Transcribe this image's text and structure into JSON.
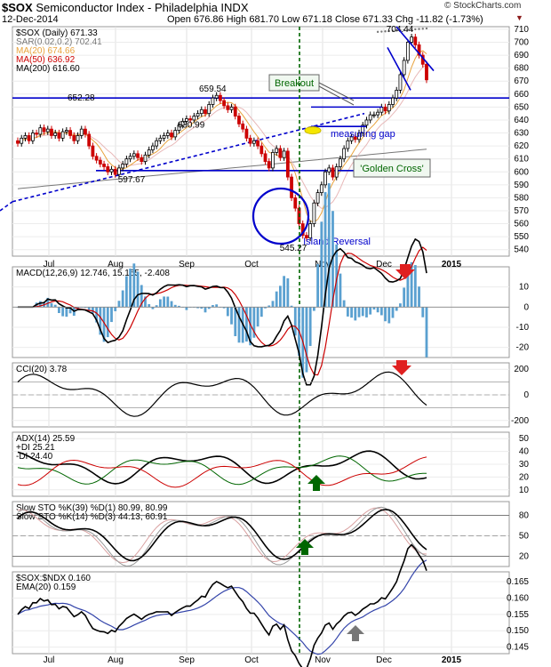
{
  "header": {
    "symbol": "$SOX",
    "name": "Semiconductor Index - Philadelphia INDX",
    "date": "12-Dec-2014",
    "ohlc": "Open 676.86  High 681.70  Low 671.18  Close 671.33  Chg -11.82 (-1.73%)",
    "copyright": "© StockCharts.com"
  },
  "colors": {
    "up": "#000000",
    "down": "#cc0000",
    "ma20": "#e8a33d",
    "ma50": "#cc0000",
    "ma200": "#777777",
    "blue": "#0000cc",
    "green": "#006600"
  },
  "chart_data": [
    {
      "type": "candlestick",
      "legend": [
        "$SOX (Daily) 671.33",
        "SAR(0.02,0.2) 702.41",
        "MA(20) 674.66",
        "MA(50) 636.92",
        "MA(200) 616.60"
      ],
      "ylim": [
        535,
        712
      ],
      "y_ticks": [
        540,
        550,
        560,
        570,
        580,
        590,
        600,
        610,
        620,
        630,
        640,
        650,
        660,
        670,
        680,
        690,
        700,
        710
      ],
      "x_months": [
        "Jul",
        "Aug",
        "Sep",
        "Oct",
        "Nov",
        "Dec",
        "2015"
      ],
      "closes": [
        622,
        626,
        628,
        624,
        630,
        629,
        634,
        631,
        633,
        628,
        630,
        626,
        631,
        632,
        628,
        624,
        628,
        633,
        629,
        620,
        612,
        609,
        606,
        604,
        600,
        602,
        598,
        603,
        606,
        610,
        612,
        614,
        611,
        608,
        613,
        617,
        620,
        624,
        626,
        628,
        630,
        627,
        632,
        636,
        639,
        641,
        640,
        643,
        645,
        648,
        645,
        652,
        657,
        659,
        655,
        651,
        648,
        650,
        643,
        637,
        633,
        626,
        622,
        624,
        620,
        614,
        608,
        603,
        615,
        618,
        611,
        616,
        596,
        580,
        572,
        560,
        551,
        549,
        560,
        576,
        584,
        590,
        600,
        603,
        596,
        604,
        610,
        618,
        624,
        627,
        625,
        630,
        636,
        640,
        644,
        644,
        646,
        650,
        647,
        652,
        657,
        663,
        675,
        686,
        700,
        704,
        698,
        690,
        683,
        671
      ],
      "annotations": {
        "highs": [
          652.28,
          659.54,
          704.44
        ],
        "lows": [
          597.67,
          630.99,
          545.27
        ],
        "labels": [
          "Breakout",
          "measuring gap",
          "'Golden Cross'",
          "Island Reversal"
        ]
      },
      "hlines": [
        657,
        601
      ]
    },
    {
      "type": "line",
      "legend": [
        "MACD(12,26,9) 12.746, 15.155, -2.408"
      ],
      "ylim": [
        -25,
        20
      ],
      "y_ticks": [
        10,
        0,
        -10,
        -20
      ],
      "series": [
        {
          "name": "MACD"
        },
        {
          "name": "signal"
        },
        {
          "name": "histogram"
        }
      ]
    },
    {
      "type": "line",
      "legend": [
        "CCI(20) 3.78"
      ],
      "ylim": [
        -250,
        250
      ],
      "y_ticks": [
        200,
        0,
        -200
      ]
    },
    {
      "type": "line",
      "legend": [
        "ADX(14) 25.59",
        "+DI 25.21",
        "-DI 24.40"
      ],
      "ylim": [
        5,
        55
      ],
      "y_ticks": [
        50,
        40,
        30,
        20,
        10
      ]
    },
    {
      "type": "line",
      "legend": [
        "Slow STO %K(39) %D(1) 80.99, 80.99",
        "Slow STO %K(14) %D(3) 44.13, 60.91"
      ],
      "ylim": [
        5,
        100
      ],
      "y_ticks": [
        80,
        50,
        20
      ]
    },
    {
      "type": "line",
      "legend": [
        "$SOX:$NDX 0.160",
        "EMA(20) 0.159"
      ],
      "ylim": [
        0.143,
        0.168
      ],
      "y_ticks": [
        "0.165",
        "0.160",
        "0.155",
        "0.150",
        "0.145"
      ]
    }
  ]
}
